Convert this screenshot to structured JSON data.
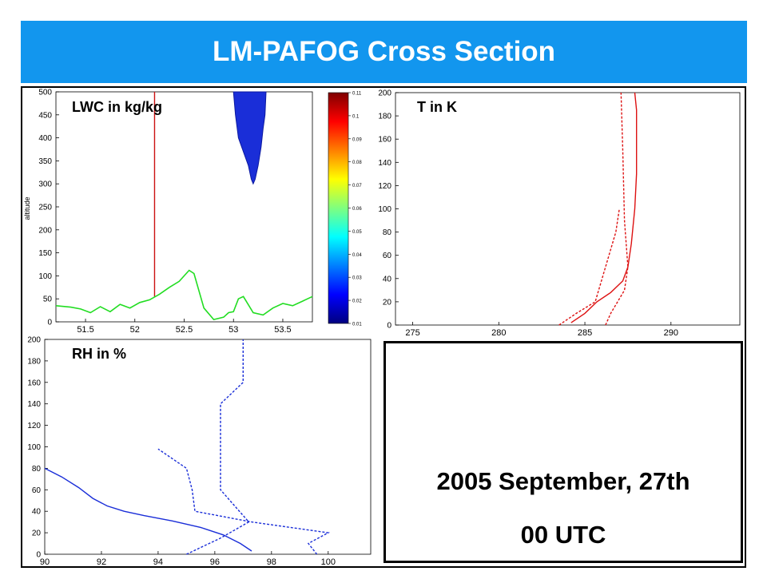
{
  "title": "LM-PAFOG Cross Section",
  "date_line": "2005 September, 27th",
  "time_line": "00 UTC",
  "chart_data": [
    {
      "type": "line",
      "label": "LWC in kg/kg",
      "ylabel": "altitude",
      "xlim": [
        51.2,
        53.8
      ],
      "ylim": [
        0,
        500
      ],
      "xticks": [
        51.5,
        52,
        52.5,
        53,
        53.5
      ],
      "yticks": [
        0,
        50,
        100,
        150,
        200,
        250,
        300,
        350,
        400,
        450,
        500
      ],
      "vertical_line_x": 52.2,
      "terrain": {
        "color": "#22dd22",
        "x": [
          51.2,
          51.35,
          51.45,
          51.55,
          51.65,
          51.75,
          51.85,
          51.95,
          52.05,
          52.15,
          52.25,
          52.35,
          52.45,
          52.55,
          52.6,
          52.7,
          52.8,
          52.9,
          52.95,
          53.0,
          53.05,
          53.1,
          53.2,
          53.3,
          53.4,
          53.5,
          53.6,
          53.7,
          53.8
        ],
        "y": [
          35,
          32,
          28,
          20,
          33,
          22,
          38,
          30,
          42,
          48,
          60,
          75,
          88,
          112,
          105,
          30,
          5,
          10,
          20,
          22,
          50,
          55,
          20,
          15,
          30,
          40,
          35,
          45,
          55
        ]
      },
      "fog_region": {
        "color": "#1a2ed8",
        "x": [
          53.0,
          53.02,
          53.05,
          53.1,
          53.15,
          53.18,
          53.2,
          53.22,
          53.25,
          53.28,
          53.3,
          53.32,
          53.33,
          53.32,
          53.3,
          53.0
        ],
        "y": [
          500,
          450,
          400,
          370,
          340,
          310,
          300,
          310,
          340,
          380,
          420,
          450,
          500,
          500,
          500,
          500
        ]
      },
      "colorbar": {
        "ticks": [
          0.01,
          0.02,
          0.03,
          0.04,
          0.05,
          0.06,
          0.07,
          0.08,
          0.09,
          0.1,
          0.11
        ],
        "colors": [
          "#00007f",
          "#0000ff",
          "#007fff",
          "#00ffff",
          "#7fff7f",
          "#ffff00",
          "#ff7f00",
          "#ff0000",
          "#7f0000"
        ]
      }
    },
    {
      "type": "line",
      "label": "T in K",
      "xlim": [
        274,
        294
      ],
      "ylim": [
        0,
        200
      ],
      "xticks": [
        275,
        280,
        285,
        290
      ],
      "yticks": [
        0,
        20,
        40,
        60,
        80,
        100,
        120,
        140,
        160,
        180,
        200
      ],
      "series": [
        {
          "style": "solid",
          "color": "#dd1111",
          "x": [
            284.2,
            285.0,
            285.7,
            286.5,
            287.2,
            287.5,
            287.7,
            287.9,
            288.0,
            288.0,
            288.0,
            287.9
          ],
          "y": [
            2,
            10,
            20,
            28,
            38,
            50,
            70,
            100,
            130,
            160,
            185,
            200
          ]
        },
        {
          "style": "dashed",
          "color": "#dd1111",
          "x": [
            283.5,
            284.5,
            285.6,
            286.0,
            286.4,
            286.8,
            287.0
          ],
          "y": [
            0,
            10,
            20,
            40,
            60,
            80,
            100
          ]
        },
        {
          "style": "dashed",
          "color": "#dd1111",
          "x": [
            286.2,
            286.5,
            287.3,
            287.5,
            287.3,
            287.2,
            287.1
          ],
          "y": [
            0,
            10,
            30,
            50,
            90,
            150,
            200
          ]
        }
      ]
    },
    {
      "type": "line",
      "label": "RH in %",
      "xlim": [
        90,
        101.5
      ],
      "ylim": [
        0,
        200
      ],
      "xticks": [
        90,
        92,
        94,
        96,
        98,
        100
      ],
      "yticks": [
        0,
        20,
        40,
        60,
        80,
        100,
        120,
        140,
        160,
        180,
        200
      ],
      "series": [
        {
          "style": "solid",
          "color": "#1a2ed8",
          "x": [
            90.0,
            90.6,
            91.2,
            91.7,
            92.2,
            92.8,
            93.5,
            94.5,
            95.5,
            96.3,
            96.9,
            97.3
          ],
          "y": [
            80,
            72,
            62,
            52,
            45,
            40,
            36,
            31,
            25,
            18,
            10,
            3
          ]
        },
        {
          "style": "dashed",
          "color": "#1a2ed8",
          "x": [
            95.0,
            96.2,
            97.2,
            96.2,
            96.2,
            96.2,
            97.0,
            97.0
          ],
          "y": [
            0,
            15,
            30,
            60,
            120,
            140,
            160,
            200
          ]
        },
        {
          "style": "dashed",
          "color": "#1a2ed8",
          "x": [
            99.6,
            99.3,
            100.0,
            97.3,
            95.3,
            95.2,
            95.0,
            94.0
          ],
          "y": [
            0,
            10,
            20,
            30,
            40,
            60,
            80,
            98
          ]
        }
      ]
    }
  ]
}
